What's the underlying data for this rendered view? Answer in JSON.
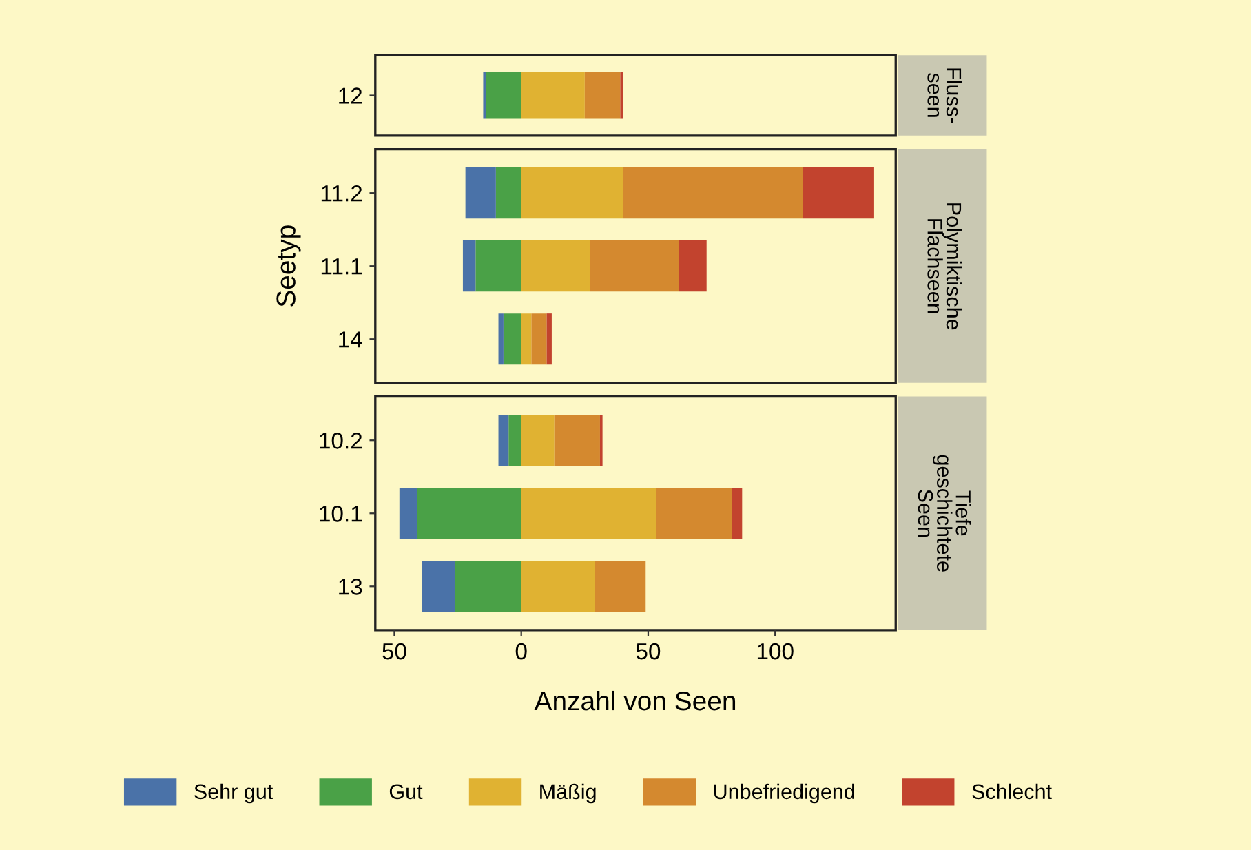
{
  "chart_data": [
    {
      "type": "bar",
      "orientation": "horizontal",
      "stacked": true,
      "annotations": [
        "Fluss-\nseen"
      ],
      "categories": [
        "12"
      ],
      "series": [
        {
          "color": "#4a72a8",
          "values": [
            -1
          ]
        },
        {
          "color": "#4aa147",
          "values": [
            -14
          ]
        },
        {
          "color": "#e0b232",
          "values": [
            25
          ]
        },
        {
          "color": "#d4892f",
          "values": [
            14
          ]
        },
        {
          "color": "#c2432e",
          "values": [
            1
          ]
        }
      ],
      "xlim": [
        -57.5,
        147.5
      ],
      "tick_labels": "y"
    },
    {
      "type": "bar",
      "orientation": "horizontal",
      "stacked": true,
      "annotations": [
        "Polymiktische\nFlachseen"
      ],
      "ylabel": "Seetyp",
      "categories": [
        "11.2",
        "11.1",
        "14"
      ],
      "series": [
        {
          "color": "#4a72a8",
          "values": [
            -12,
            -5,
            -2
          ]
        },
        {
          "color": "#4aa147",
          "values": [
            -10,
            -18,
            -7
          ]
        },
        {
          "color": "#e0b232",
          "values": [
            40,
            27,
            4
          ]
        },
        {
          "color": "#d4892f",
          "values": [
            71,
            35,
            6
          ]
        },
        {
          "color": "#c2432e",
          "values": [
            28,
            11,
            2
          ]
        }
      ],
      "xlim": [
        -57.5,
        147.5
      ],
      "tick_labels": "y"
    },
    {
      "type": "bar",
      "orientation": "horizontal",
      "stacked": true,
      "annotations": [
        "Tiefe\ngeschichtete\nSeen"
      ],
      "xlabel": "Anzahl von Seen",
      "categories": [
        "10.2",
        "10.1",
        "13"
      ],
      "series": [
        {
          "name": "Sehr gut",
          "color": "#4a72a8",
          "values": [
            -4,
            -7,
            -13
          ]
        },
        {
          "name": "Gut",
          "color": "#4aa147",
          "values": [
            -5,
            -41,
            -26
          ]
        },
        {
          "name": "Mäßig",
          "color": "#e0b232",
          "values": [
            13,
            53,
            29
          ]
        },
        {
          "name": "Unbefriedigend",
          "color": "#d4892f",
          "values": [
            18,
            30,
            20
          ]
        },
        {
          "name": "Schlecht",
          "color": "#c2432e",
          "values": [
            1,
            4,
            0
          ]
        }
      ],
      "xlim": [
        -57.5,
        147.5
      ],
      "xticks": [
        {
          "value": -50,
          "label": "50"
        },
        0,
        50,
        100
      ],
      "legend": "bottom"
    }
  ]
}
